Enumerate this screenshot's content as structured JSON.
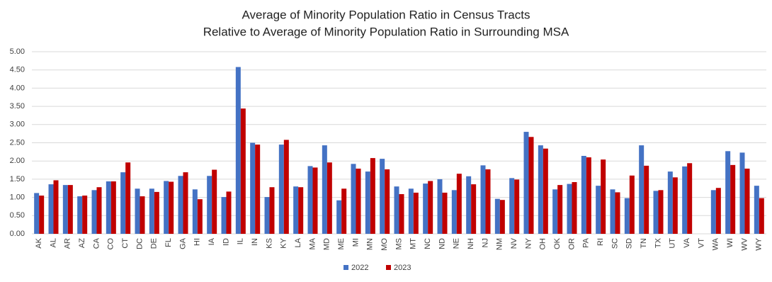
{
  "chart_data": {
    "type": "bar",
    "title": [
      "Average of Minority Population Ratio in Census Tracts",
      "Relative to Average of Minority Population Ratio in Surrounding MSA"
    ],
    "categories": [
      "AK",
      "AL",
      "AR",
      "AZ",
      "CA",
      "CO",
      "CT",
      "DC",
      "DE",
      "FL",
      "GA",
      "HI",
      "IA",
      "ID",
      "IL",
      "IN",
      "KS",
      "KY",
      "LA",
      "MA",
      "MD",
      "ME",
      "MI",
      "MN",
      "MO",
      "MS",
      "MT",
      "NC",
      "ND",
      "NE",
      "NH",
      "NJ",
      "NM",
      "NV",
      "NY",
      "OH",
      "OK",
      "OR",
      "PA",
      "RI",
      "SC",
      "SD",
      "TN",
      "TX",
      "UT",
      "VA",
      "VT",
      "WA",
      "WI",
      "WV",
      "WY"
    ],
    "series": [
      {
        "name": "2022",
        "color": "#4472c4",
        "values": [
          1.12,
          1.36,
          1.34,
          1.03,
          1.2,
          1.44,
          1.69,
          1.24,
          1.24,
          1.45,
          1.59,
          1.22,
          1.59,
          1.01,
          4.58,
          2.5,
          1.01,
          2.45,
          1.3,
          1.86,
          2.43,
          0.92,
          1.92,
          1.71,
          2.06,
          1.3,
          1.24,
          1.38,
          1.5,
          1.2,
          1.58,
          1.88,
          0.96,
          1.53,
          2.8,
          2.43,
          1.22,
          1.37,
          2.14,
          1.32,
          1.22,
          0.98,
          2.43,
          1.18,
          1.71,
          1.85,
          null,
          1.2,
          2.27,
          2.23,
          1.32
        ]
      },
      {
        "name": "2023",
        "color": "#c00000",
        "values": [
          1.05,
          1.47,
          1.34,
          1.05,
          1.28,
          1.44,
          1.96,
          1.03,
          1.15,
          1.43,
          1.69,
          0.95,
          1.76,
          1.16,
          3.44,
          2.45,
          1.28,
          2.58,
          1.28,
          1.82,
          1.96,
          1.24,
          1.79,
          2.08,
          1.77,
          1.09,
          1.13,
          1.45,
          1.13,
          1.65,
          1.36,
          1.77,
          0.93,
          1.49,
          2.66,
          2.34,
          1.34,
          1.42,
          2.1,
          2.04,
          1.14,
          1.6,
          1.87,
          1.2,
          1.55,
          1.94,
          null,
          1.26,
          1.89,
          1.79,
          0.98
        ]
      }
    ],
    "ylim": [
      0,
      5
    ],
    "yticks": [
      {
        "value": 0,
        "label": "0.00"
      },
      {
        "value": 0.5,
        "label": "0.50"
      },
      {
        "value": 1,
        "label": "1.00"
      },
      {
        "value": 1.5,
        "label": "1.50"
      },
      {
        "value": 2,
        "label": "2.00"
      },
      {
        "value": 2.5,
        "label": "2.50"
      },
      {
        "value": 3,
        "label": "3.00"
      },
      {
        "value": 3.5,
        "label": "3.50"
      },
      {
        "value": 4,
        "label": "4.00"
      },
      {
        "value": 4.5,
        "label": "4.50"
      },
      {
        "value": 5,
        "label": "5.00"
      }
    ],
    "grid": true,
    "legend": "bottom"
  }
}
